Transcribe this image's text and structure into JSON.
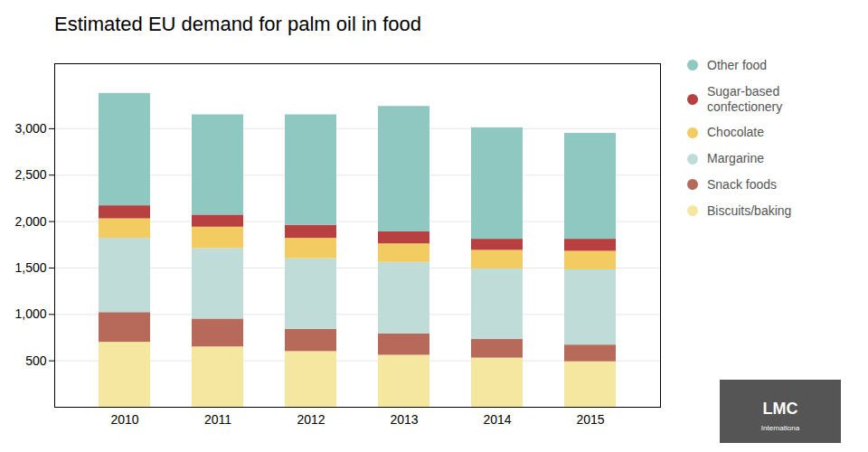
{
  "chart_data": {
    "type": "bar",
    "title": "Estimated EU demand for palm oil in food",
    "categories": [
      "2010",
      "2011",
      "2012",
      "2013",
      "2014",
      "2015"
    ],
    "series": [
      {
        "name": "Biscuits/baking",
        "color": "#f5e6a0",
        "values": [
          700,
          650,
          600,
          560,
          530,
          490
        ]
      },
      {
        "name": "Snack foods",
        "color": "#b86a5a",
        "values": [
          320,
          300,
          240,
          230,
          200,
          180
        ]
      },
      {
        "name": "Margarine",
        "color": "#c0dcd8",
        "values": [
          800,
          760,
          760,
          770,
          760,
          810
        ]
      },
      {
        "name": "Chocolate",
        "color": "#f2cc60",
        "values": [
          210,
          230,
          220,
          200,
          200,
          200
        ]
      },
      {
        "name": "Sugar-based\nconfectionery",
        "color": "#b84040",
        "values": [
          140,
          130,
          140,
          130,
          120,
          130
        ]
      },
      {
        "name": "Other food",
        "color": "#8ec8c0",
        "values": [
          1210,
          1080,
          1190,
          1350,
          1200,
          1140
        ]
      }
    ],
    "stacked": true,
    "ylim": [
      0,
      3700
    ],
    "yticks": [
      500,
      {
        "value": 1000,
        "label": "1,000"
      },
      {
        "value": 1500,
        "label": "1,500"
      },
      {
        "value": 2000,
        "label": "2,000"
      },
      {
        "value": 2500,
        "label": "2,500"
      },
      {
        "value": 3000,
        "label": "3,000"
      }
    ],
    "grid": true,
    "legend": "right",
    "annotations": [
      "LMC",
      "Internationa"
    ]
  }
}
